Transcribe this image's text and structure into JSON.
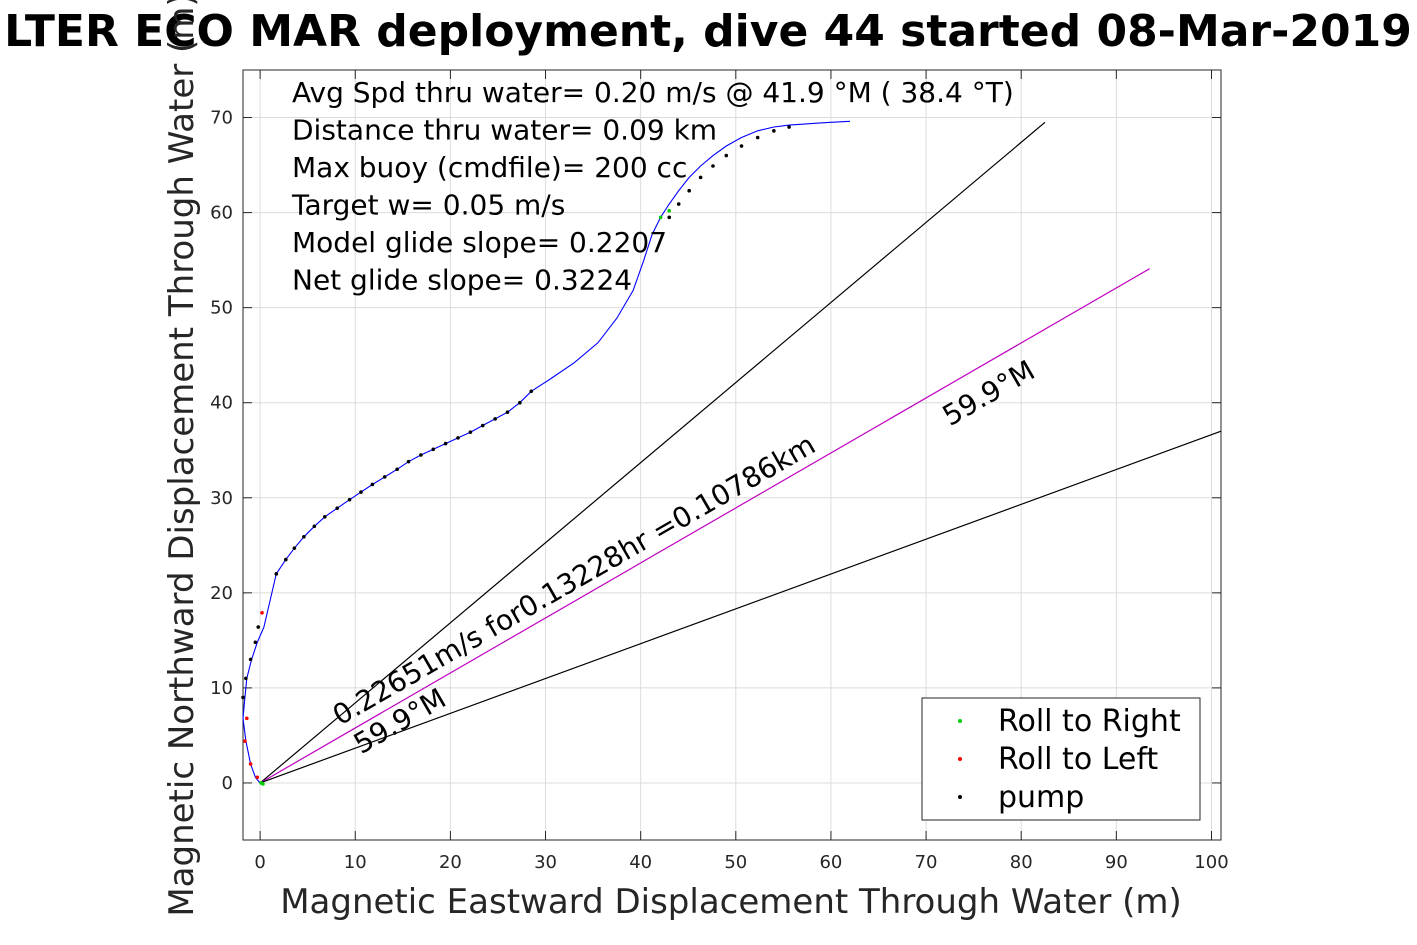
{
  "chart_data": {
    "type": "line",
    "title": "LTER ECO MAR deployment, dive 44 started 08-Mar-2019",
    "xlabel": "Magnetic Eastward Displacement Through Water (m)",
    "ylabel": "Magnetic Northward Displacement Through Water (m)",
    "xlim": [
      -1.8,
      101
    ],
    "ylim": [
      -6,
      75
    ],
    "xticks": [
      0,
      10,
      20,
      30,
      40,
      50,
      60,
      70,
      80,
      90,
      100
    ],
    "yticks": [
      0,
      10,
      20,
      30,
      40,
      50,
      60,
      70
    ],
    "grid": true,
    "info_lines": [
      "Avg Spd thru water=  0.20 m/s @  41.9 °M ( 38.4 °T)",
      "Distance thru water=  0.09 km",
      "Max buoy (cmdfile)= 200 cc",
      "Target w= 0.05 m/s",
      "Model glide slope= 0.2207",
      "Net glide slope= 0.3224"
    ],
    "track": {
      "color": "#0000ff",
      "x": [
        0,
        -0.5,
        -1.0,
        -1.5,
        -1.8,
        -1.6,
        -1.4,
        -0.9,
        -0.3,
        0.4,
        1.7,
        2.7,
        3.6,
        4.6,
        5.7,
        6.8,
        8.1,
        9.4,
        10.6,
        11.8,
        13.1,
        14.4,
        15.6,
        16.9,
        18.2,
        19.5,
        20.8,
        22.1,
        23.4,
        24.7,
        26.0,
        27.3,
        28.5,
        30.5,
        33.0,
        35.5,
        37.5,
        39.2,
        40.3,
        41.2,
        42.1,
        43.0,
        44.0,
        45.1,
        46.3,
        47.6,
        49.0,
        50.6,
        52.3,
        54.0,
        55.6,
        57.0,
        58.5,
        60.0,
        62.0
      ],
      "y": [
        0,
        0.6,
        2.0,
        4.4,
        6.8,
        9.0,
        11.0,
        13.0,
        14.8,
        16.4,
        22.0,
        23.5,
        24.7,
        25.9,
        27.0,
        28.0,
        28.9,
        29.8,
        30.6,
        31.4,
        32.2,
        33.0,
        33.8,
        34.5,
        35.1,
        35.7,
        36.3,
        36.9,
        37.6,
        38.3,
        39.0,
        40.0,
        41.2,
        42.5,
        44.2,
        46.3,
        48.9,
        51.8,
        54.9,
        57.7,
        59.5,
        60.9,
        62.3,
        63.7,
        64.9,
        66.0,
        67.0,
        67.9,
        68.6,
        69.0,
        69.2,
        69.3,
        69.4,
        69.5,
        69.6
      ]
    },
    "markers": {
      "pump": {
        "color": "#000000",
        "x": [
          -1.8,
          -1.5,
          -1.0,
          -0.5,
          -0.2,
          1.7,
          2.7,
          3.6,
          4.6,
          5.7,
          6.8,
          8.1,
          9.4,
          10.6,
          11.8,
          13.1,
          14.4,
          15.6,
          16.9,
          18.2,
          19.5,
          20.8,
          22.1,
          23.4,
          24.7,
          26.0,
          27.3,
          28.5,
          43.0,
          44.0,
          45.1,
          46.3,
          47.6,
          49.0,
          50.6,
          52.3,
          54.0,
          55.6
        ],
        "y": [
          9.0,
          11.0,
          13.0,
          14.8,
          16.4,
          22.0,
          23.5,
          24.7,
          25.9,
          27.0,
          28.0,
          28.9,
          29.8,
          30.6,
          31.4,
          32.2,
          33.0,
          33.8,
          34.5,
          35.1,
          35.7,
          36.3,
          36.9,
          37.6,
          38.3,
          39.0,
          40.0,
          41.2,
          59.5,
          60.9,
          62.3,
          63.7,
          64.9,
          66.0,
          67.0,
          67.9,
          68.6,
          69.0
        ]
      },
      "roll_left": {
        "color": "#ff0000",
        "x": [
          -1.4,
          -1.6,
          -1.0,
          -0.3,
          0.2
        ],
        "y": [
          6.8,
          4.4,
          2.0,
          0.6,
          17.9
        ]
      },
      "roll_right": {
        "color": "#00cc00",
        "x": [
          0.1,
          0.3,
          42.1,
          43.0
        ],
        "y": [
          0.0,
          -0.1,
          59.5,
          60.2
        ]
      }
    },
    "reference_lines": [
      {
        "color": "#000000",
        "x": [
          0,
          82.5
        ],
        "y": [
          0,
          69.5
        ]
      },
      {
        "color": "#c000c0",
        "x": [
          0,
          93.5
        ],
        "y": [
          0,
          54.1
        ]
      },
      {
        "color": "#000000",
        "x": [
          0,
          101
        ],
        "y": [
          0,
          37.0
        ]
      }
    ],
    "annotations": [
      {
        "text": "0.22651m/s for0.13228hr =0.10786km",
        "x": 8.4,
        "y": 6.0,
        "angle_deg": 30.0
      },
      {
        "text": "59.9°M",
        "x": 10.6,
        "y": 3.0,
        "angle_deg": 30.0
      },
      {
        "text": "59.9°M",
        "x": 72.5,
        "y": 37.5,
        "angle_deg": 30.0
      }
    ],
    "legend": {
      "placement": "bottom-right",
      "entries": [
        {
          "name": "Roll to Right",
          "color": "#00cc00"
        },
        {
          "name": "Roll to Left",
          "color": "#ff0000"
        },
        {
          "name": "pump",
          "color": "#000000"
        }
      ]
    }
  }
}
